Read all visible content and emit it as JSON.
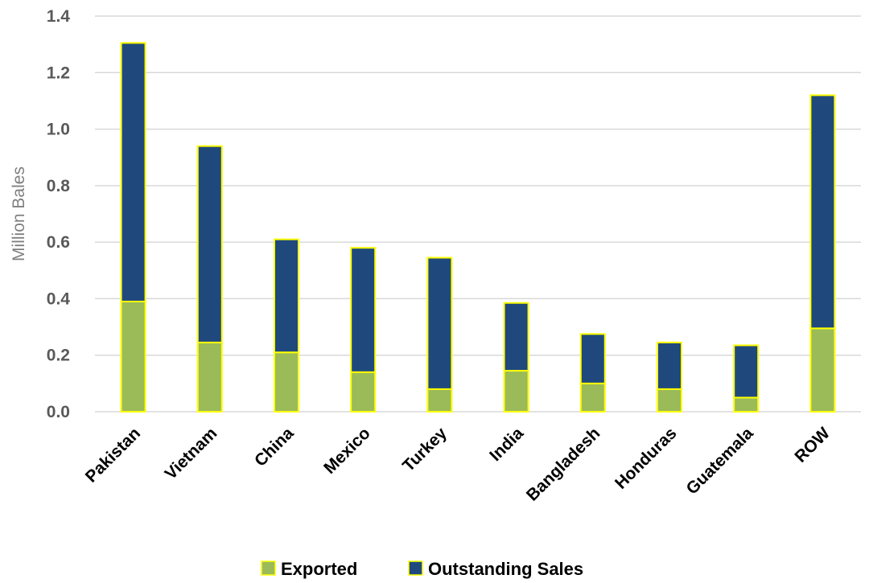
{
  "chart_data": {
    "type": "bar",
    "stacked": true,
    "title": "",
    "xlabel": "",
    "ylabel": "Million Bales",
    "ylim": [
      0,
      1.4
    ],
    "yticks": [
      "0.0",
      "0.2",
      "0.4",
      "0.6",
      "0.8",
      "1.0",
      "1.2",
      "1.4"
    ],
    "grid": true,
    "legend_position": "bottom",
    "categories": [
      "Pakistan",
      "Vietnam",
      "China",
      "Mexico",
      "Turkey",
      "India",
      "Bangladesh",
      "Honduras",
      "Guatemala",
      "ROW"
    ],
    "series": [
      {
        "name": "Exported",
        "color": "#9bbb59",
        "values": [
          0.39,
          0.245,
          0.21,
          0.14,
          0.08,
          0.145,
          0.1,
          0.08,
          0.05,
          0.295
        ]
      },
      {
        "name": "Outstanding Sales",
        "color": "#1f497d",
        "values": [
          0.915,
          0.695,
          0.4,
          0.44,
          0.465,
          0.24,
          0.175,
          0.165,
          0.185,
          0.825
        ]
      }
    ],
    "bar_outline_color": "#ffff00"
  }
}
